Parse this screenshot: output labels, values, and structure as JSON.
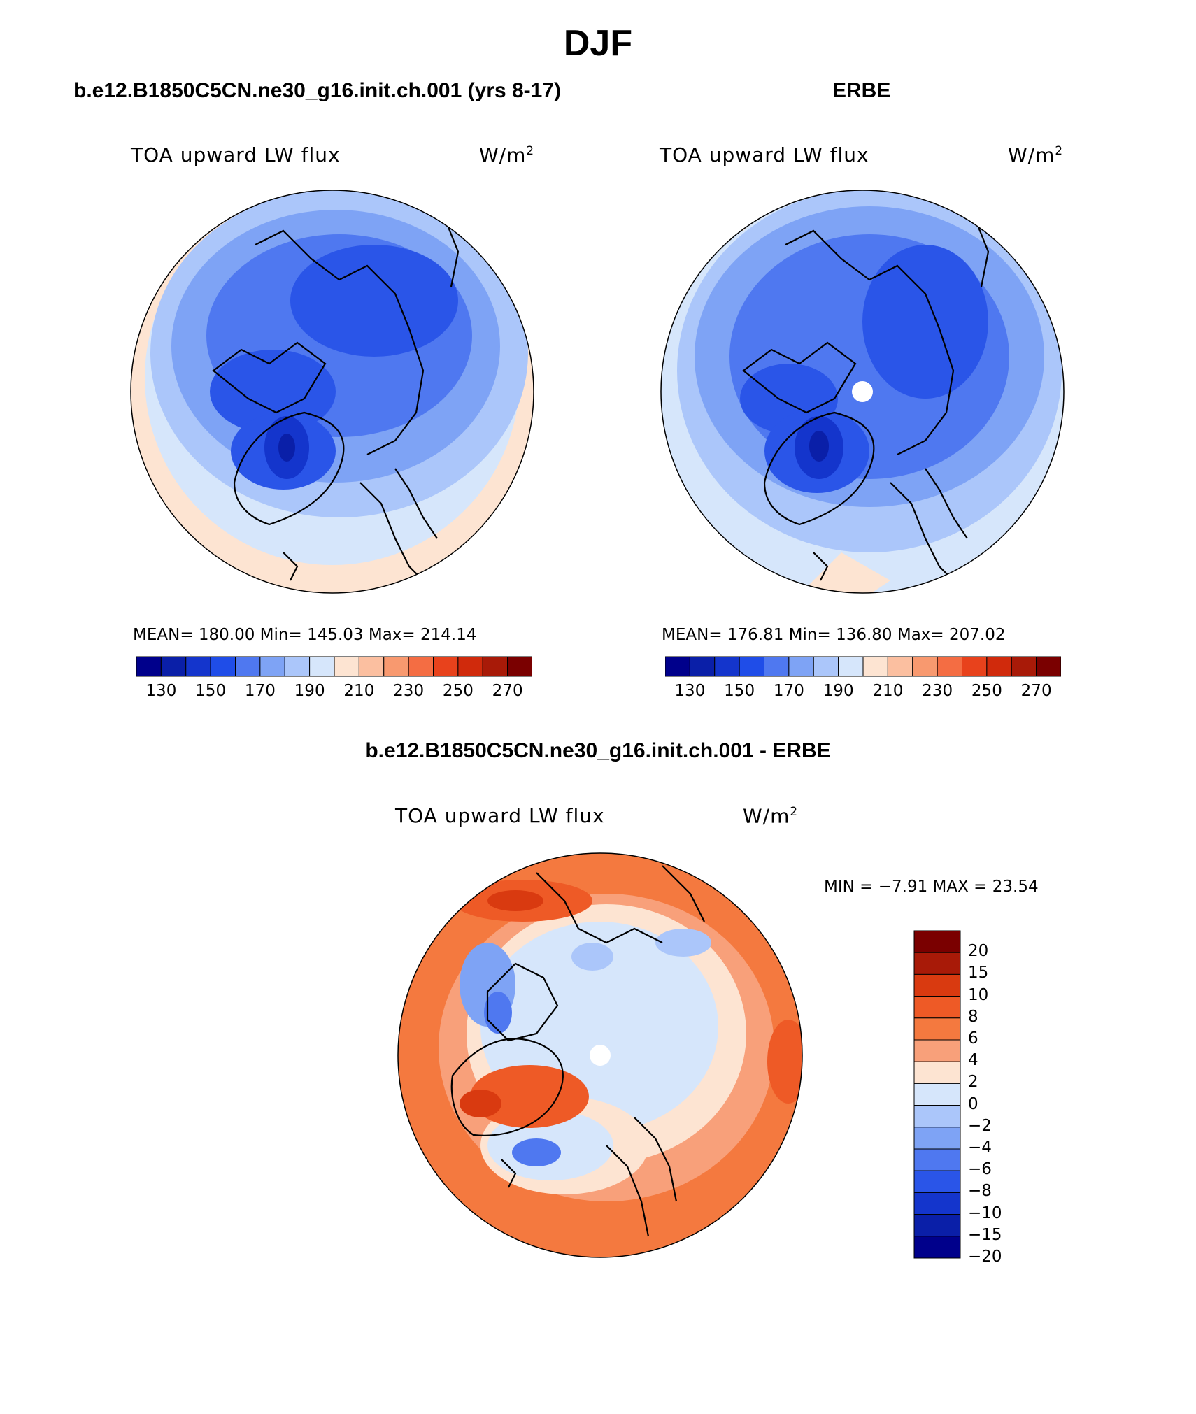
{
  "figure_title": "DJF",
  "panels": [
    {
      "header": "b.e12.B1850C5CN.ne30_g16.init.ch.001 (yrs 8-17)",
      "variable": "TOA upward LW flux",
      "units_base": "W/m",
      "units_exp": "2",
      "stats": "MEAN= 180.00   Min= 145.03   Max= 214.14"
    },
    {
      "header": "ERBE",
      "variable": "TOA upward LW flux",
      "units_base": "W/m",
      "units_exp": "2",
      "stats": "MEAN= 176.81   Min= 136.80   Max= 207.02"
    },
    {
      "header": "b.e12.B1850C5CN.ne30_g16.init.ch.001 - ERBE",
      "variable": "TOA upward LW flux",
      "units_base": "W/m",
      "units_exp": "2",
      "stats": "MIN =   −7.91 MAX =   23.54"
    }
  ],
  "colorbar_abs": {
    "colors": [
      "#00008b",
      "#0a1fa8",
      "#1435cc",
      "#1f4de8",
      "#4f78f0",
      "#7ea3f5",
      "#abc6fa",
      "#d6e6fb",
      "#fde4d2",
      "#fbbfa0",
      "#f8996f",
      "#f46d43",
      "#e8421c",
      "#d02a0c",
      "#a81a08",
      "#7a0000"
    ],
    "labels": [
      "130",
      "150",
      "170",
      "190",
      "210",
      "230",
      "250",
      "270"
    ]
  },
  "colorbar_diff": {
    "colors": [
      "#7a0000",
      "#a81a08",
      "#d93a10",
      "#ee5a26",
      "#f4793f",
      "#f8a07a",
      "#fde4d2",
      "#d6e6fb",
      "#abc6fa",
      "#7ea3f5",
      "#4f78f0",
      "#2a55e8",
      "#1435cc",
      "#0a1fa8",
      "#00008b"
    ],
    "labels": [
      "20",
      "15",
      "10",
      "8",
      "6",
      "4",
      "2",
      "0",
      "−2",
      "−4",
      "−6",
      "−8",
      "−10",
      "−15",
      "−20"
    ]
  }
}
